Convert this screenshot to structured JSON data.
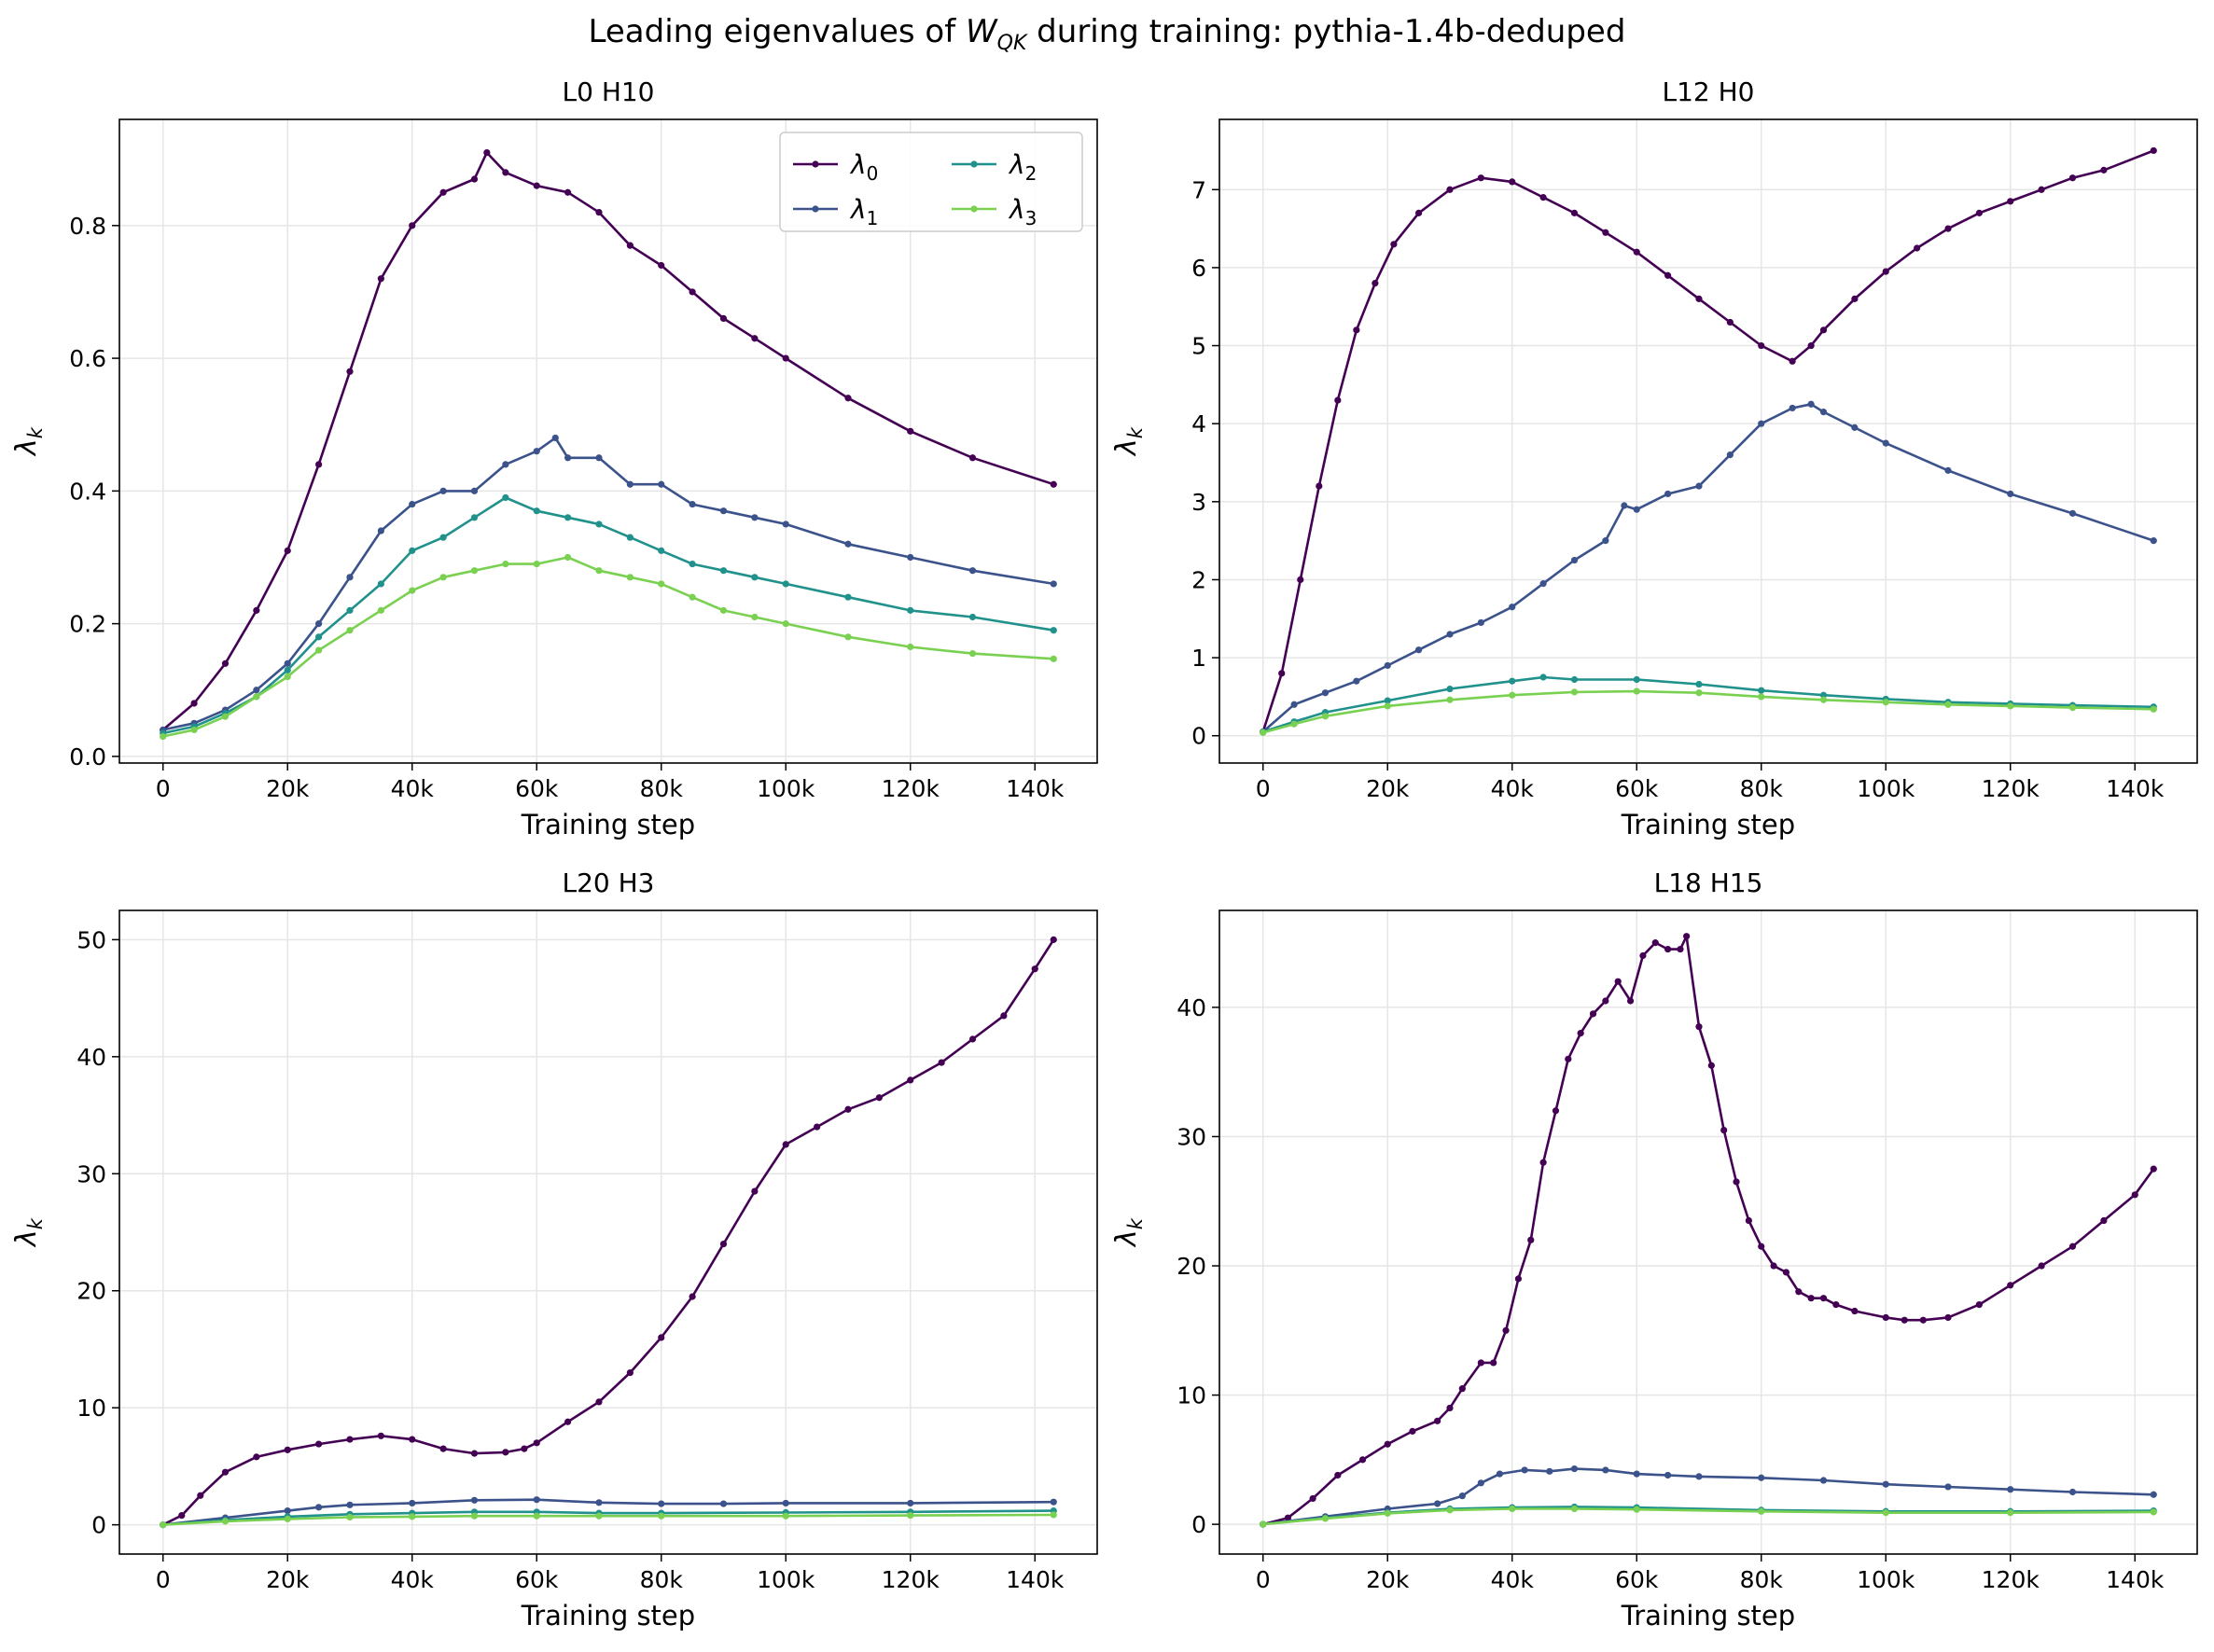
{
  "figure": {
    "title_prefix": "Leading eigenvalues of ",
    "title_symbol": "W",
    "title_subscript": "QK",
    "title_suffix": " during training: pythia-1.4b-deduped"
  },
  "legend": {
    "placement": "top-right of first panel",
    "columns": 2,
    "entries": [
      {
        "symbol": "λ",
        "subscript": "0"
      },
      {
        "symbol": "λ",
        "subscript": "1"
      },
      {
        "symbol": "λ",
        "subscript": "2"
      },
      {
        "symbol": "λ",
        "subscript": "3"
      }
    ]
  },
  "colors": {
    "lambda0": "#440154",
    "lambda1": "#3b528b",
    "lambda2": "#21918c",
    "lambda3": "#7ad151",
    "grid": "#e6e6e6"
  },
  "chart_data": [
    {
      "type": "line",
      "title": "L0 H10",
      "xlabel": "Training step",
      "ylabel_symbol": "λ",
      "ylabel_subscript": "k",
      "xlim": [
        -7000,
        150000
      ],
      "ylim": [
        -0.01,
        0.96
      ],
      "grid": true,
      "xticks": [
        0,
        20000,
        40000,
        60000,
        80000,
        100000,
        120000,
        140000
      ],
      "xtick_labels": [
        "0",
        "20k",
        "40k",
        "60k",
        "80k",
        "100k",
        "120k",
        "140k"
      ],
      "yticks": [
        0.0,
        0.2,
        0.4,
        0.6,
        0.8
      ],
      "ytick_labels": [
        "0.0",
        "0.2",
        "0.4",
        "0.6",
        "0.8"
      ],
      "series": [
        {
          "name": "λ0",
          "x": [
            0,
            5000,
            10000,
            15000,
            20000,
            25000,
            30000,
            35000,
            40000,
            45000,
            50000,
            52000,
            55000,
            60000,
            65000,
            70000,
            75000,
            80000,
            85000,
            90000,
            95000,
            100000,
            110000,
            120000,
            130000,
            143000
          ],
          "y": [
            0.04,
            0.08,
            0.14,
            0.22,
            0.31,
            0.44,
            0.58,
            0.72,
            0.8,
            0.85,
            0.87,
            0.91,
            0.88,
            0.86,
            0.85,
            0.82,
            0.77,
            0.74,
            0.7,
            0.66,
            0.63,
            0.6,
            0.54,
            0.49,
            0.45,
            0.41
          ]
        },
        {
          "name": "λ1",
          "x": [
            0,
            5000,
            10000,
            15000,
            20000,
            25000,
            30000,
            35000,
            40000,
            45000,
            50000,
            55000,
            60000,
            63000,
            65000,
            70000,
            75000,
            80000,
            85000,
            90000,
            95000,
            100000,
            110000,
            120000,
            130000,
            143000
          ],
          "y": [
            0.04,
            0.05,
            0.07,
            0.1,
            0.14,
            0.2,
            0.27,
            0.34,
            0.38,
            0.4,
            0.4,
            0.44,
            0.46,
            0.48,
            0.45,
            0.45,
            0.41,
            0.41,
            0.38,
            0.37,
            0.36,
            0.35,
            0.32,
            0.3,
            0.28,
            0.26
          ]
        },
        {
          "name": "λ2",
          "x": [
            0,
            5000,
            10000,
            15000,
            20000,
            25000,
            30000,
            35000,
            40000,
            45000,
            50000,
            55000,
            60000,
            65000,
            70000,
            75000,
            80000,
            85000,
            90000,
            95000,
            100000,
            110000,
            120000,
            130000,
            143000
          ],
          "y": [
            0.035,
            0.045,
            0.065,
            0.09,
            0.13,
            0.18,
            0.22,
            0.26,
            0.31,
            0.33,
            0.36,
            0.39,
            0.37,
            0.36,
            0.35,
            0.33,
            0.31,
            0.29,
            0.28,
            0.27,
            0.26,
            0.24,
            0.22,
            0.21,
            0.19
          ]
        },
        {
          "name": "λ3",
          "x": [
            0,
            5000,
            10000,
            15000,
            20000,
            25000,
            30000,
            35000,
            40000,
            45000,
            50000,
            55000,
            60000,
            65000,
            70000,
            75000,
            80000,
            85000,
            90000,
            95000,
            100000,
            110000,
            120000,
            130000,
            143000
          ],
          "y": [
            0.03,
            0.04,
            0.06,
            0.09,
            0.12,
            0.16,
            0.19,
            0.22,
            0.25,
            0.27,
            0.28,
            0.29,
            0.29,
            0.3,
            0.28,
            0.27,
            0.26,
            0.24,
            0.22,
            0.21,
            0.2,
            0.18,
            0.165,
            0.155,
            0.147
          ]
        }
      ]
    },
    {
      "type": "line",
      "title": "L12 H0",
      "xlabel": "Training step",
      "ylabel_symbol": "λ",
      "ylabel_subscript": "k",
      "xlim": [
        -7000,
        150000
      ],
      "ylim": [
        -0.35,
        7.9
      ],
      "grid": true,
      "xticks": [
        0,
        20000,
        40000,
        60000,
        80000,
        100000,
        120000,
        140000
      ],
      "xtick_labels": [
        "0",
        "20k",
        "40k",
        "60k",
        "80k",
        "100k",
        "120k",
        "140k"
      ],
      "yticks": [
        0,
        1,
        2,
        3,
        4,
        5,
        6,
        7
      ],
      "ytick_labels": [
        "0",
        "1",
        "2",
        "3",
        "4",
        "5",
        "6",
        "7"
      ],
      "series": [
        {
          "name": "λ0",
          "x": [
            0,
            3000,
            6000,
            9000,
            12000,
            15000,
            18000,
            21000,
            25000,
            30000,
            35000,
            40000,
            45000,
            50000,
            55000,
            60000,
            65000,
            70000,
            75000,
            80000,
            85000,
            88000,
            90000,
            95000,
            100000,
            105000,
            110000,
            115000,
            120000,
            125000,
            130000,
            135000,
            143000
          ],
          "y": [
            0.05,
            0.8,
            2.0,
            3.2,
            4.3,
            5.2,
            5.8,
            6.3,
            6.7,
            7.0,
            7.15,
            7.1,
            6.9,
            6.7,
            6.45,
            6.2,
            5.9,
            5.6,
            5.3,
            5.0,
            4.8,
            5.0,
            5.2,
            5.6,
            5.95,
            6.25,
            6.5,
            6.7,
            6.85,
            7.0,
            7.15,
            7.25,
            7.5
          ]
        },
        {
          "name": "λ1",
          "x": [
            0,
            5000,
            10000,
            15000,
            20000,
            25000,
            30000,
            35000,
            40000,
            45000,
            50000,
            55000,
            58000,
            60000,
            65000,
            70000,
            75000,
            80000,
            85000,
            88000,
            90000,
            95000,
            100000,
            110000,
            120000,
            130000,
            143000
          ],
          "y": [
            0.05,
            0.4,
            0.55,
            0.7,
            0.9,
            1.1,
            1.3,
            1.45,
            1.65,
            1.95,
            2.25,
            2.5,
            2.95,
            2.9,
            3.1,
            3.2,
            3.6,
            4.0,
            4.2,
            4.25,
            4.15,
            3.95,
            3.75,
            3.4,
            3.1,
            2.85,
            2.5
          ]
        },
        {
          "name": "λ2",
          "x": [
            0,
            5000,
            10000,
            20000,
            30000,
            40000,
            45000,
            50000,
            60000,
            70000,
            80000,
            90000,
            100000,
            110000,
            120000,
            130000,
            143000
          ],
          "y": [
            0.05,
            0.18,
            0.3,
            0.45,
            0.6,
            0.7,
            0.75,
            0.72,
            0.72,
            0.66,
            0.58,
            0.52,
            0.47,
            0.43,
            0.41,
            0.39,
            0.37
          ]
        },
        {
          "name": "λ3",
          "x": [
            0,
            5000,
            10000,
            20000,
            30000,
            40000,
            50000,
            60000,
            70000,
            80000,
            90000,
            100000,
            110000,
            120000,
            130000,
            143000
          ],
          "y": [
            0.04,
            0.15,
            0.25,
            0.38,
            0.46,
            0.52,
            0.56,
            0.57,
            0.55,
            0.5,
            0.46,
            0.43,
            0.4,
            0.38,
            0.36,
            0.34
          ]
        }
      ]
    },
    {
      "type": "line",
      "title": "L20 H3",
      "xlabel": "Training step",
      "ylabel_symbol": "λ",
      "ylabel_subscript": "k",
      "xlim": [
        -7000,
        150000
      ],
      "ylim": [
        -2.5,
        52.5
      ],
      "grid": true,
      "xticks": [
        0,
        20000,
        40000,
        60000,
        80000,
        100000,
        120000,
        140000
      ],
      "xtick_labels": [
        "0",
        "20k",
        "40k",
        "60k",
        "80k",
        "100k",
        "120k",
        "140k"
      ],
      "yticks": [
        0,
        10,
        20,
        30,
        40,
        50
      ],
      "ytick_labels": [
        "0",
        "10",
        "20",
        "30",
        "40",
        "50"
      ],
      "series": [
        {
          "name": "λ0",
          "x": [
            0,
            3000,
            6000,
            10000,
            15000,
            20000,
            25000,
            30000,
            35000,
            40000,
            45000,
            50000,
            55000,
            58000,
            60000,
            65000,
            70000,
            75000,
            80000,
            85000,
            90000,
            95000,
            100000,
            105000,
            110000,
            115000,
            120000,
            125000,
            130000,
            135000,
            140000,
            143000
          ],
          "y": [
            0,
            0.8,
            2.5,
            4.5,
            5.8,
            6.4,
            6.9,
            7.3,
            7.6,
            7.3,
            6.5,
            6.1,
            6.2,
            6.5,
            7.0,
            8.8,
            10.5,
            13.0,
            16.0,
            19.5,
            24.0,
            28.5,
            32.5,
            34.0,
            35.5,
            36.5,
            38.0,
            39.5,
            41.5,
            43.5,
            47.5,
            50.0
          ]
        },
        {
          "name": "λ1",
          "x": [
            0,
            10000,
            20000,
            25000,
            30000,
            40000,
            50000,
            60000,
            70000,
            80000,
            90000,
            100000,
            120000,
            143000
          ],
          "y": [
            0,
            0.6,
            1.2,
            1.5,
            1.7,
            1.85,
            2.1,
            2.15,
            1.9,
            1.8,
            1.8,
            1.85,
            1.85,
            1.95
          ]
        },
        {
          "name": "λ2",
          "x": [
            0,
            10000,
            20000,
            30000,
            40000,
            50000,
            60000,
            70000,
            80000,
            100000,
            120000,
            143000
          ],
          "y": [
            0,
            0.4,
            0.7,
            0.9,
            1.0,
            1.1,
            1.1,
            1.0,
            1.0,
            1.05,
            1.1,
            1.2
          ]
        },
        {
          "name": "λ3",
          "x": [
            0,
            10000,
            20000,
            30000,
            40000,
            50000,
            60000,
            70000,
            80000,
            100000,
            120000,
            143000
          ],
          "y": [
            0,
            0.3,
            0.5,
            0.65,
            0.7,
            0.75,
            0.75,
            0.75,
            0.75,
            0.75,
            0.8,
            0.85
          ]
        }
      ]
    },
    {
      "type": "line",
      "title": "L18 H15",
      "xlabel": "Training step",
      "ylabel_symbol": "λ",
      "ylabel_subscript": "k",
      "xlim": [
        -7000,
        150000
      ],
      "ylim": [
        -2.3,
        47.5
      ],
      "grid": true,
      "xticks": [
        0,
        20000,
        40000,
        60000,
        80000,
        100000,
        120000,
        140000
      ],
      "xtick_labels": [
        "0",
        "20k",
        "40k",
        "60k",
        "80k",
        "100k",
        "120k",
        "140k"
      ],
      "yticks": [
        0,
        10,
        20,
        30,
        40
      ],
      "ytick_labels": [
        "0",
        "10",
        "20",
        "30",
        "40"
      ],
      "series": [
        {
          "name": "λ0",
          "x": [
            0,
            4000,
            8000,
            12000,
            16000,
            20000,
            24000,
            28000,
            30000,
            32000,
            35000,
            37000,
            39000,
            41000,
            43000,
            45000,
            47000,
            49000,
            51000,
            53000,
            55000,
            57000,
            59000,
            61000,
            63000,
            65000,
            67000,
            68000,
            70000,
            72000,
            74000,
            76000,
            78000,
            80000,
            82000,
            84000,
            86000,
            88000,
            90000,
            92000,
            95000,
            100000,
            103000,
            106000,
            110000,
            115000,
            120000,
            125000,
            130000,
            135000,
            140000,
            143000
          ],
          "y": [
            0,
            0.5,
            2.0,
            3.8,
            5.0,
            6.2,
            7.2,
            8.0,
            9.0,
            10.5,
            12.5,
            12.5,
            15.0,
            19.0,
            22.0,
            28.0,
            32.0,
            36.0,
            38.0,
            39.5,
            40.5,
            42.0,
            40.5,
            44.0,
            45.0,
            44.5,
            44.5,
            45.5,
            38.5,
            35.5,
            30.5,
            26.5,
            23.5,
            21.5,
            20.0,
            19.5,
            18.0,
            17.5,
            17.5,
            17.0,
            16.5,
            16.0,
            15.8,
            15.8,
            16.0,
            17.0,
            18.5,
            20.0,
            21.5,
            23.5,
            25.5,
            27.5
          ]
        },
        {
          "name": "λ1",
          "x": [
            0,
            10000,
            20000,
            28000,
            32000,
            35000,
            38000,
            42000,
            46000,
            50000,
            55000,
            60000,
            65000,
            70000,
            80000,
            90000,
            100000,
            110000,
            120000,
            130000,
            143000
          ],
          "y": [
            0,
            0.6,
            1.2,
            1.6,
            2.2,
            3.2,
            3.9,
            4.2,
            4.1,
            4.3,
            4.2,
            3.9,
            3.8,
            3.7,
            3.6,
            3.4,
            3.1,
            2.9,
            2.7,
            2.5,
            2.3
          ]
        },
        {
          "name": "λ2",
          "x": [
            0,
            10000,
            20000,
            30000,
            40000,
            50000,
            60000,
            80000,
            100000,
            120000,
            143000
          ],
          "y": [
            0,
            0.5,
            0.9,
            1.2,
            1.3,
            1.35,
            1.3,
            1.1,
            1.0,
            1.0,
            1.05
          ]
        },
        {
          "name": "λ3",
          "x": [
            0,
            10000,
            20000,
            30000,
            40000,
            50000,
            60000,
            80000,
            100000,
            120000,
            143000
          ],
          "y": [
            0,
            0.45,
            0.85,
            1.1,
            1.2,
            1.2,
            1.15,
            1.0,
            0.9,
            0.9,
            0.95
          ]
        }
      ]
    }
  ]
}
